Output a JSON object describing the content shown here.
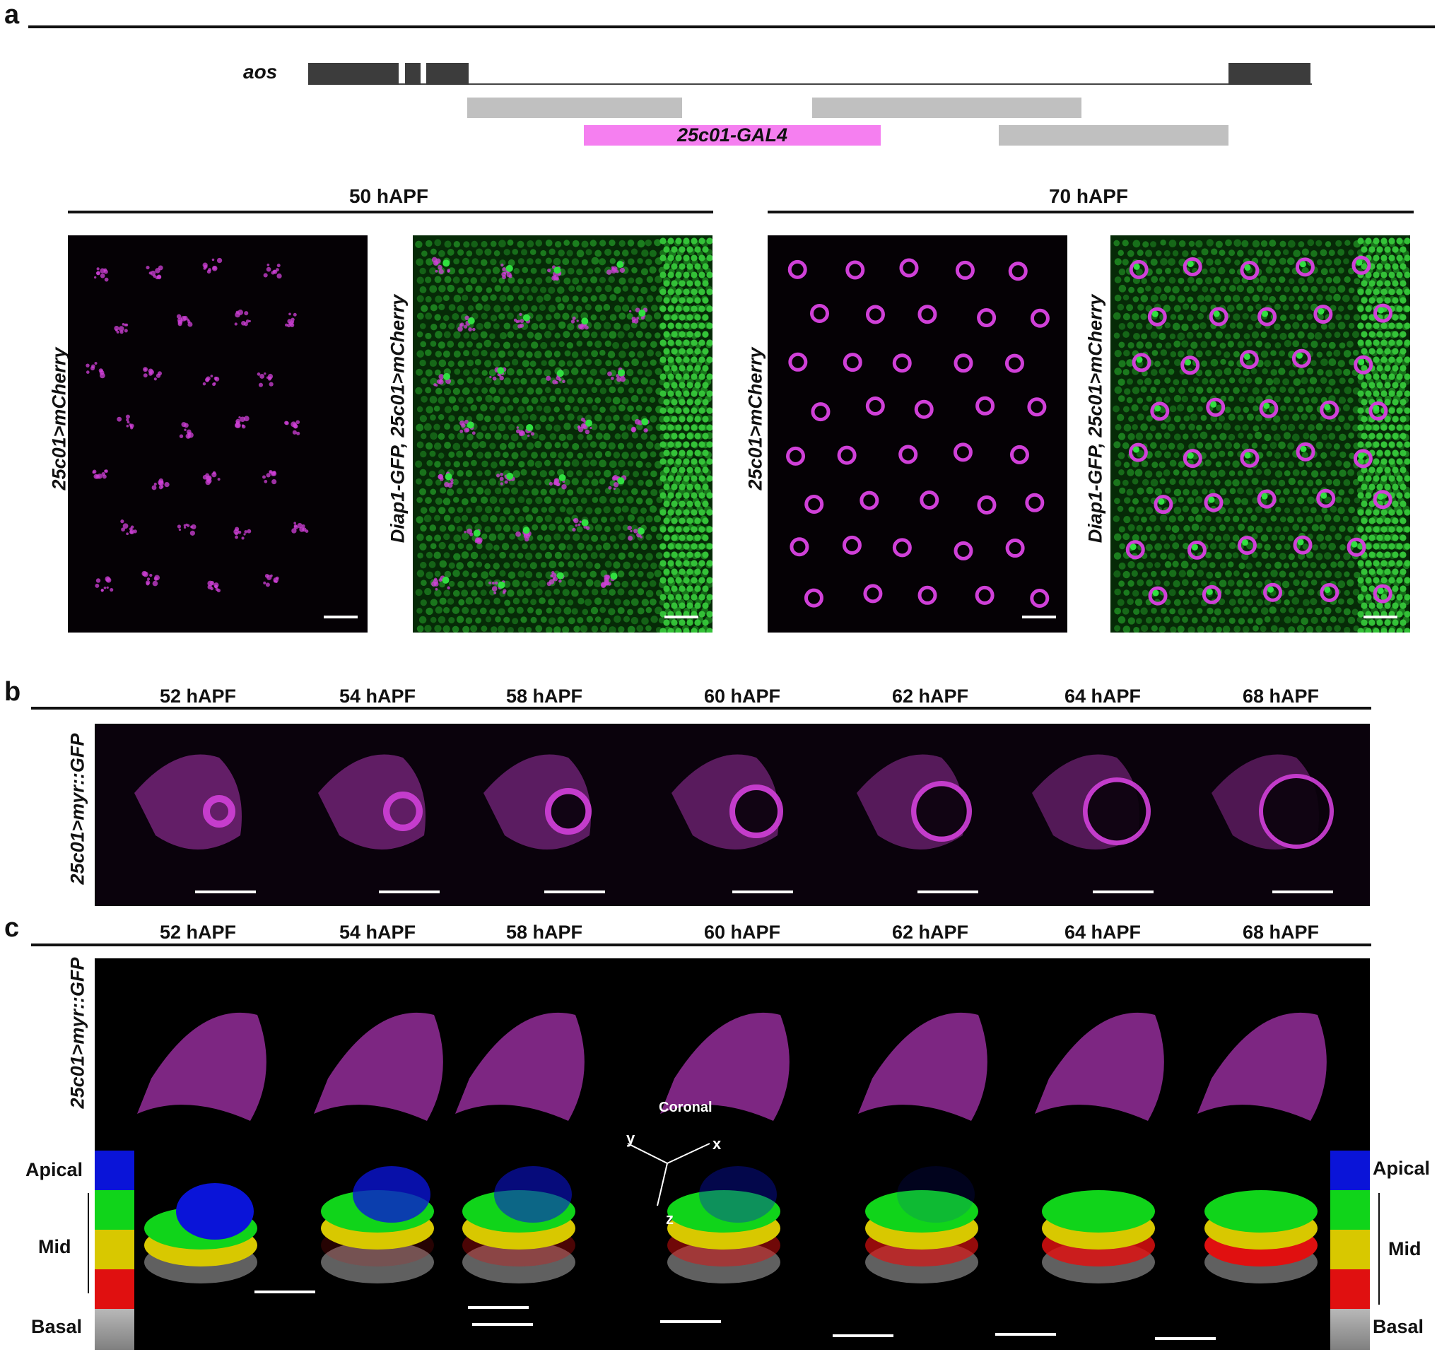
{
  "panel_letters": {
    "a": "a",
    "b": "b",
    "c": "c"
  },
  "gene": {
    "name": "aos",
    "construct": "25c01-GAL4",
    "colors": {
      "exon": "#3c3c3c",
      "fragment": "#c0c0c0",
      "construct": "#f57ff0"
    }
  },
  "panel_a": {
    "group1_title": "50 hAPF",
    "group2_title": "70 hAPF",
    "labels": [
      "25c01>mCherry",
      "Diap1-GFP, 25c01>mCherry",
      "25c01>mCherry",
      "Diap1-GFP, 25c01>mCherry"
    ]
  },
  "timepoints": [
    "52 hAPF",
    "54 hAPF",
    "58 hAPF",
    "60 hAPF",
    "62 hAPF",
    "64 hAPF",
    "68 hAPF"
  ],
  "panel_b": {
    "label": "25c01>myr::GFP"
  },
  "panel_c": {
    "label": "25c01>myr::GFP",
    "axes": {
      "title": "Coronal",
      "x": "x",
      "y": "y",
      "z": "z"
    },
    "scale_left": {
      "apical": "Apical",
      "mid": "Mid",
      "basal": "Basal"
    },
    "scale_right": {
      "apical": "Apical",
      "mid": "Mid",
      "basal": "Basal"
    },
    "colors": {
      "apical": "#0a14d8",
      "mid1": "#10d41a",
      "mid2": "#d8c800",
      "mid3": "#e01010",
      "basal": "#a0a0a0"
    }
  },
  "colors": {
    "magenta": "#d040d8",
    "green": "#30e040"
  }
}
